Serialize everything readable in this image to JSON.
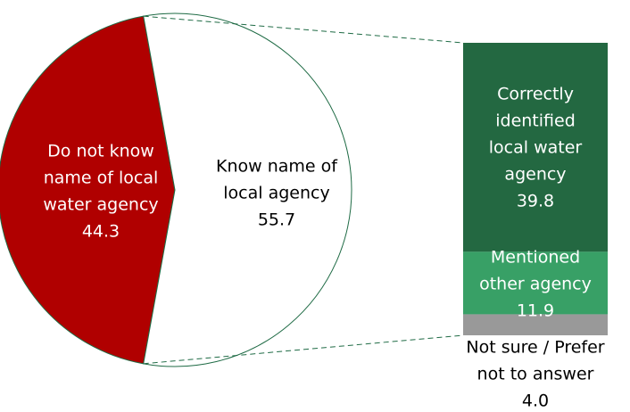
{
  "chart_data": {
    "type": "pie",
    "categories": [
      [
        "Do not know",
        "name of local",
        "water agency"
      ],
      [
        "Know name of",
        "local agency"
      ]
    ],
    "values": [
      44.3,
      55.7
    ],
    "colors": [
      "#b00000",
      "#ffffff"
    ],
    "breakdown": {
      "type": "bar",
      "categories": [
        [
          "Correctly",
          "identified",
          "local water",
          "agency"
        ],
        [
          "Mentioned",
          "other agency"
        ],
        [
          "Not sure / Prefer",
          "not to answer"
        ]
      ],
      "values": [
        39.8,
        11.9,
        4.0
      ],
      "value_labels": [
        "39.8",
        "11.9",
        "4.0"
      ],
      "colors": [
        "#236841",
        "#38a066",
        "#999999"
      ]
    }
  }
}
